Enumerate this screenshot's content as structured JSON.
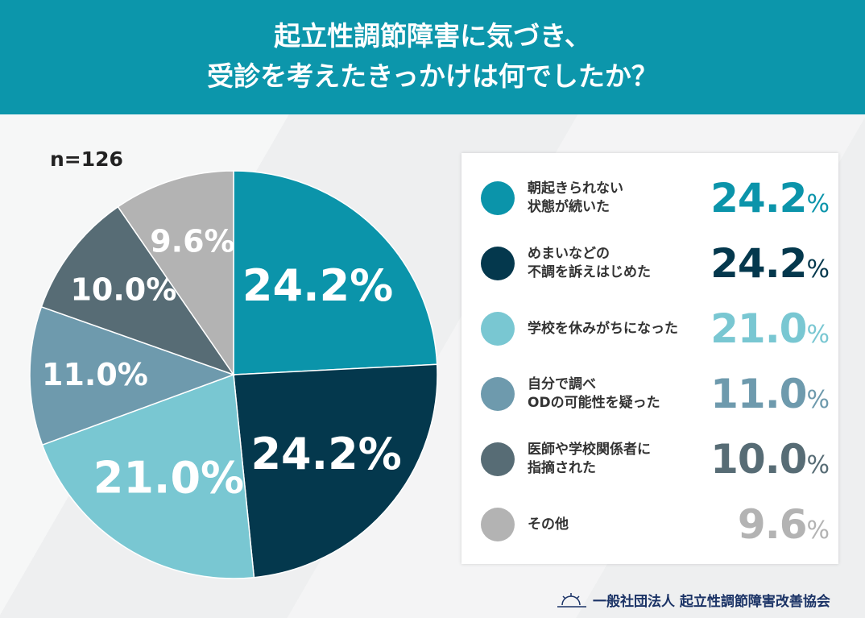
{
  "header": {
    "line1": "起立性調節障害に気づき、",
    "line2": "受診を考えたきっかけは何でしたか？"
  },
  "sample": "n=126",
  "chart_data": {
    "type": "pie",
    "unit": "%",
    "slices": [
      {
        "label": "朝起きられない\n状態が続いた",
        "value": 24.2,
        "color": "#0b94aa"
      },
      {
        "label": "めまいなどの\n不調を訴えはじめた",
        "value": 24.2,
        "color": "#04384d"
      },
      {
        "label": "学校を休みがちになった",
        "value": 21.0,
        "color": "#79c7d2"
      },
      {
        "label": "自分で調べ\nODの可能性を疑った",
        "value": 11.0,
        "color": "#6e9aad"
      },
      {
        "label": "医師や学校関係者に\n指摘された",
        "value": 10.0,
        "color": "#576c75"
      },
      {
        "label": "その他",
        "value": 9.6,
        "color": "#b3b3b3"
      }
    ]
  },
  "footer": {
    "org": "一般社団法人 起立性調節障害改善協会",
    "logo": "sunrise-logo"
  }
}
